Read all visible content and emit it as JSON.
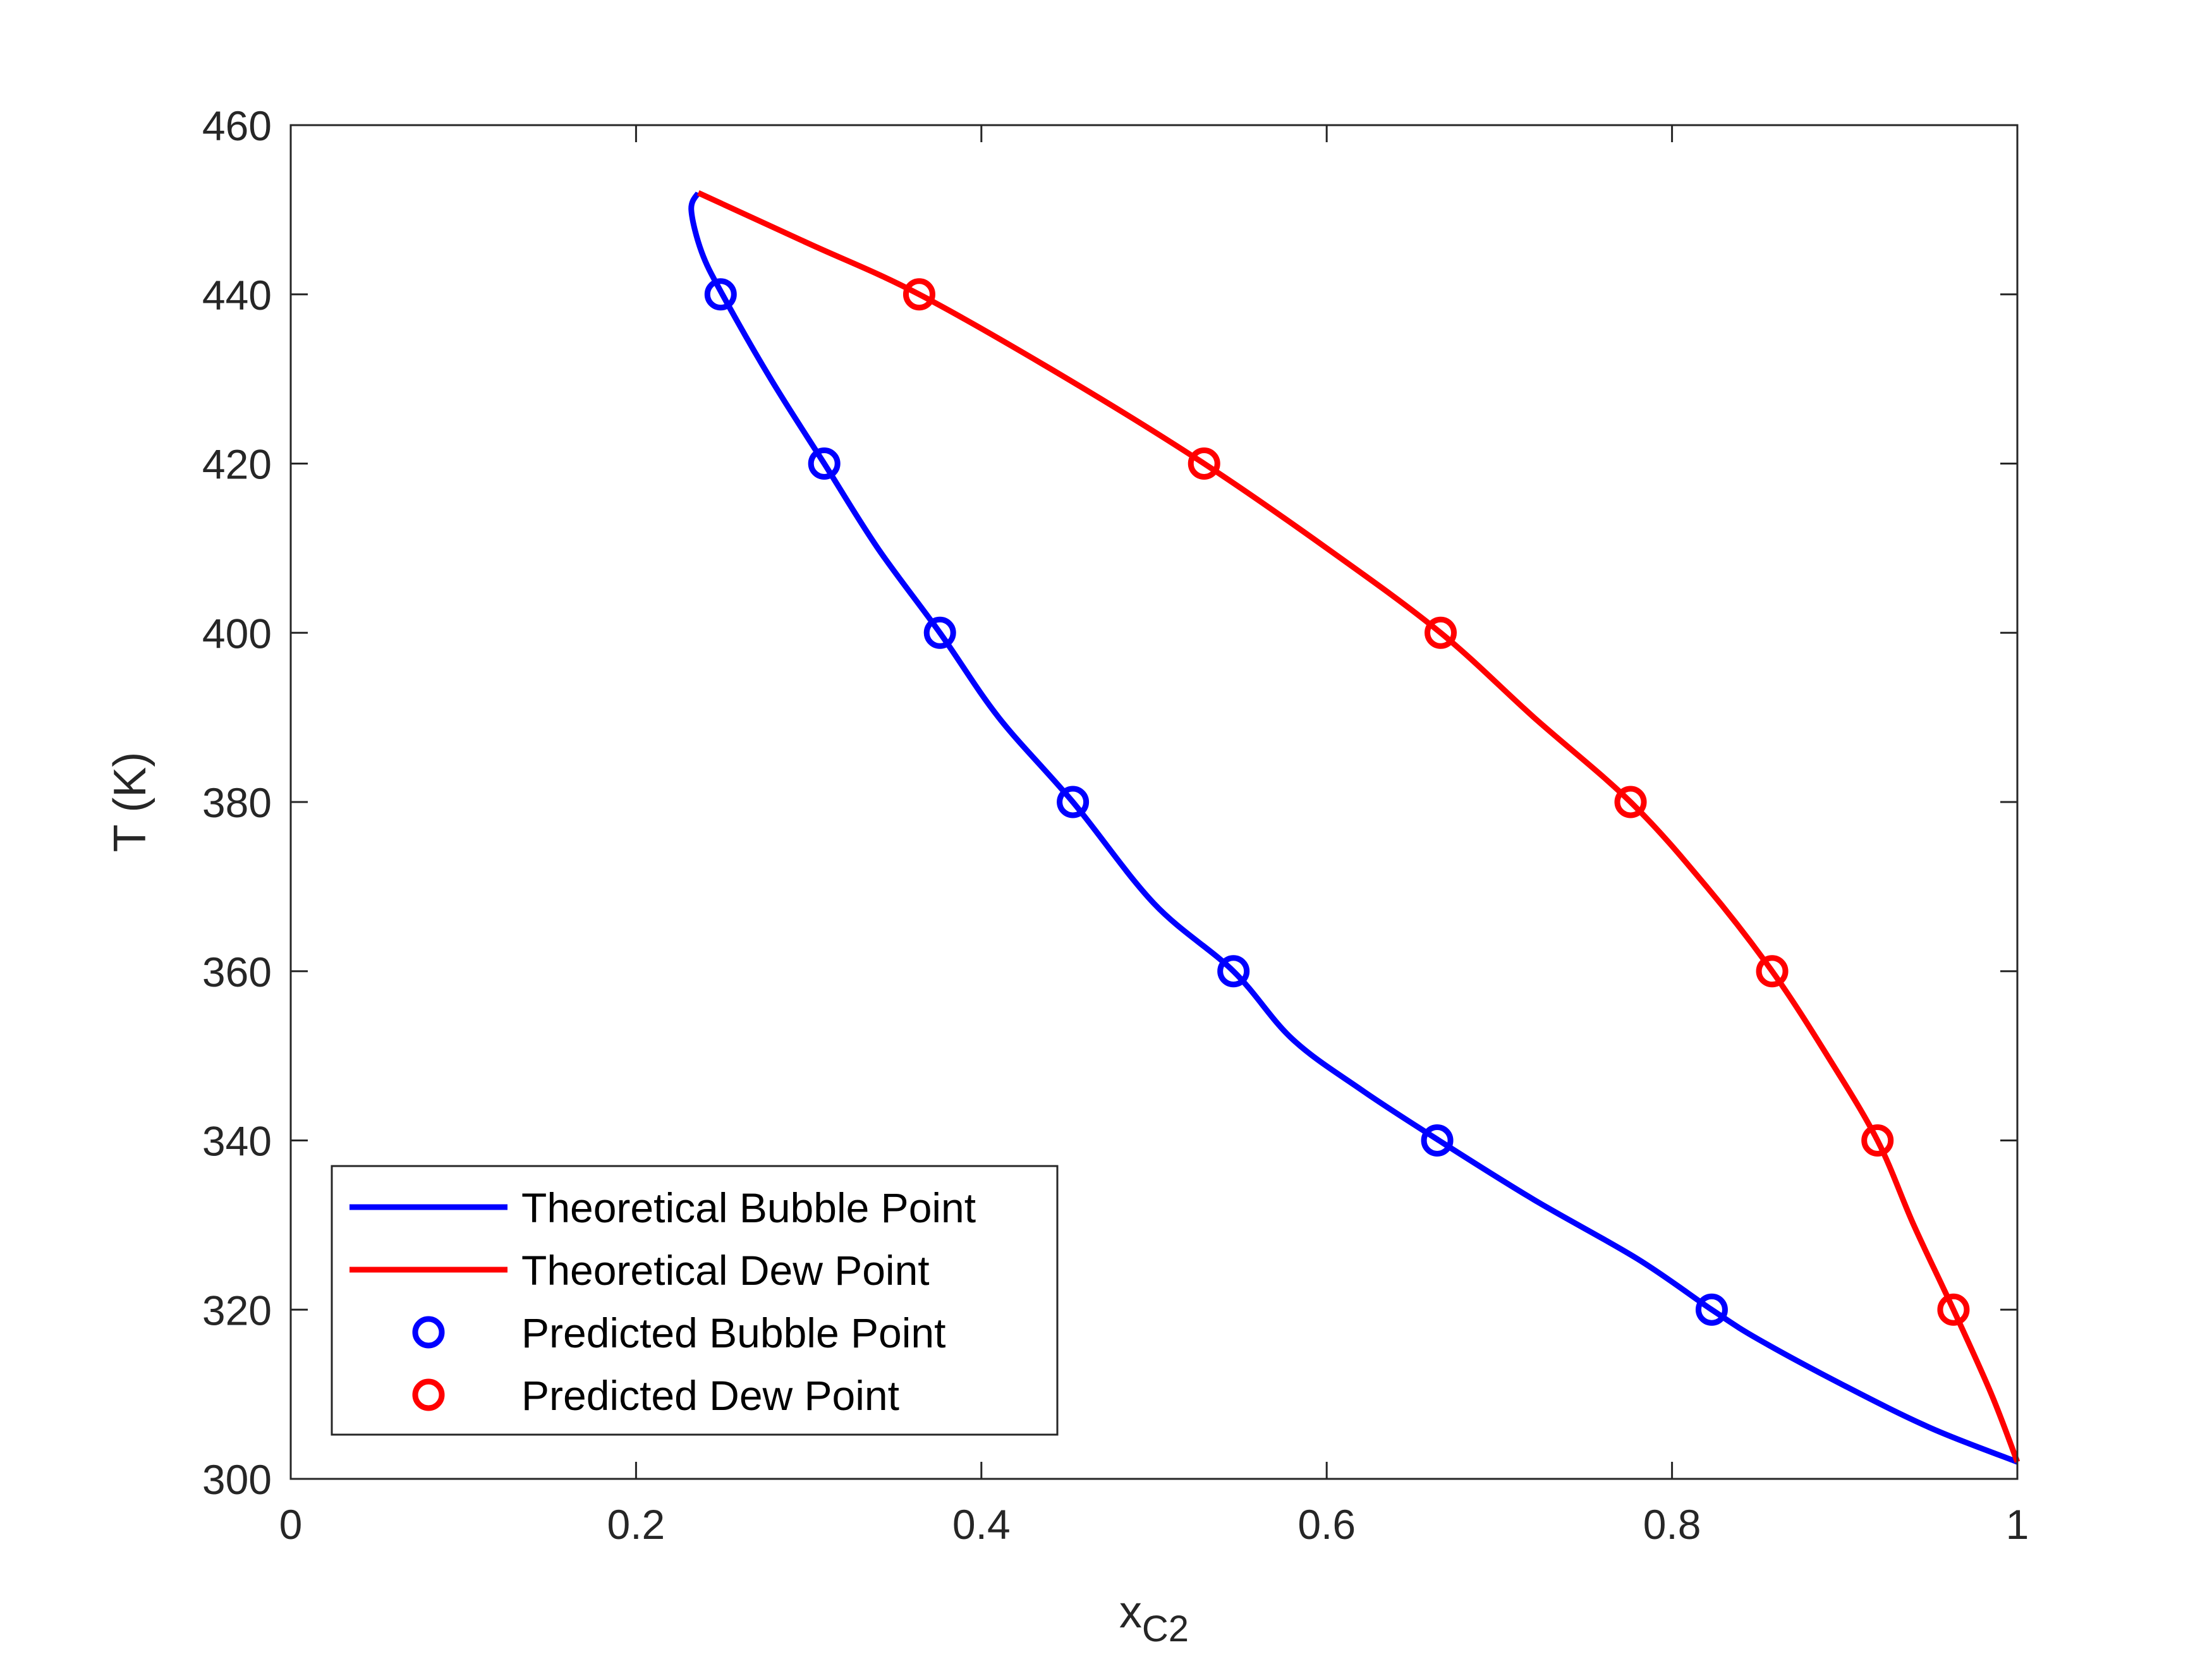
{
  "chart_data": {
    "type": "line",
    "title": "",
    "xlabel": "x",
    "xlabel_sub": "C2",
    "ylabel": "T (K)",
    "xlim": [
      0,
      1
    ],
    "ylim": [
      300,
      460
    ],
    "xticks": [
      "0",
      "0.2",
      "0.4",
      "0.6",
      "0.8",
      "1"
    ],
    "yticks": [
      "300",
      "320",
      "340",
      "360",
      "380",
      "400",
      "420",
      "440",
      "460"
    ],
    "grid": false,
    "legend_position": "bottom-left",
    "series": [
      {
        "name": "Theoretical Bubble Point",
        "kind": "line",
        "color": "#0000FF",
        "x": [
          1.0,
          0.95,
          0.9,
          0.85,
          0.823,
          0.78,
          0.72,
          0.665,
          0.62,
          0.58,
          0.546,
          0.5,
          0.453,
          0.41,
          0.376,
          0.34,
          0.309,
          0.278,
          0.25,
          0.238,
          0.232,
          0.236
        ],
        "y": [
          302,
          306,
          311,
          316.5,
          320,
          326,
          333,
          340,
          346,
          352,
          360,
          368,
          380,
          390,
          400,
          410,
          420,
          430,
          440,
          445,
          450,
          452
        ]
      },
      {
        "name": "Theoretical Dew Point",
        "kind": "line",
        "color": "#FF0000",
        "x": [
          1.0,
          0.985,
          0.963,
          0.94,
          0.919,
          0.89,
          0.858,
          0.82,
          0.776,
          0.72,
          0.666,
          0.6,
          0.529,
          0.45,
          0.364,
          0.3,
          0.236
        ],
        "y": [
          302,
          310,
          320,
          330,
          340,
          350,
          360,
          370,
          380,
          390,
          400,
          410,
          420,
          430,
          440,
          446,
          452
        ]
      },
      {
        "name": "Predicted Bubble Point",
        "kind": "marker",
        "color": "#0000FF",
        "x": [
          0.823,
          0.664,
          0.546,
          0.453,
          0.376,
          0.309,
          0.249
        ],
        "y": [
          320,
          340,
          360,
          380,
          400,
          420,
          440
        ]
      },
      {
        "name": "Predicted Dew Point",
        "kind": "marker",
        "color": "#FF0000",
        "x": [
          0.963,
          0.919,
          0.858,
          0.776,
          0.666,
          0.529,
          0.364
        ],
        "y": [
          320,
          340,
          360,
          380,
          400,
          420,
          440
        ]
      }
    ]
  }
}
